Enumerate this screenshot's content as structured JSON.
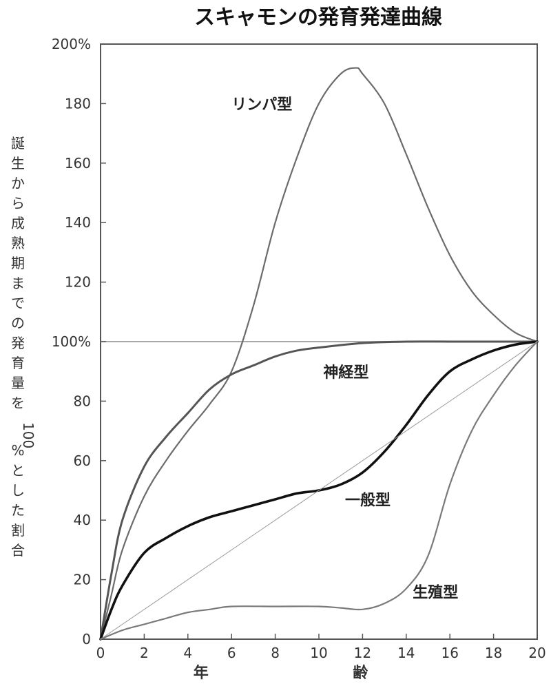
{
  "chart_data": {
    "type": "line",
    "title": "スキャモンの発育発達曲線",
    "ylabel": "誕生から成熟期までの発育量を100%とした割合",
    "xlabel_parts": [
      "年",
      "齢"
    ],
    "xlim": [
      0,
      20
    ],
    "ylim": [
      0,
      200
    ],
    "x_ticks": [
      0,
      2,
      4,
      6,
      8,
      10,
      12,
      14,
      16,
      18,
      20
    ],
    "y_ticks": [
      {
        "value": 0,
        "label": "0"
      },
      {
        "value": 20,
        "label": "20"
      },
      {
        "value": 40,
        "label": "40"
      },
      {
        "value": 60,
        "label": "60"
      },
      {
        "value": 80,
        "label": "80"
      },
      {
        "value": 100,
        "label": "100%"
      },
      {
        "value": 120,
        "label": "120"
      },
      {
        "value": 140,
        "label": "140"
      },
      {
        "value": 160,
        "label": "160"
      },
      {
        "value": 180,
        "label": "180"
      },
      {
        "value": 200,
        "label": "200%"
      }
    ],
    "grid": false,
    "reference_line_y": 100,
    "series": [
      {
        "name": "リンパ型",
        "color": "#6b6b6b",
        "label_at": [
          6,
          178
        ],
        "points": [
          [
            0,
            0
          ],
          [
            0.5,
            15
          ],
          [
            1,
            30
          ],
          [
            2,
            48
          ],
          [
            3,
            60
          ],
          [
            4,
            70
          ],
          [
            5,
            79
          ],
          [
            6,
            90
          ],
          [
            7,
            112
          ],
          [
            8,
            140
          ],
          [
            9,
            162
          ],
          [
            10,
            180
          ],
          [
            11,
            190
          ],
          [
            11.7,
            192
          ],
          [
            12,
            190
          ],
          [
            13,
            180
          ],
          [
            14,
            163
          ],
          [
            15,
            145
          ],
          [
            16,
            129
          ],
          [
            17,
            117
          ],
          [
            18,
            109
          ],
          [
            19,
            103
          ],
          [
            20,
            100
          ]
        ]
      },
      {
        "name": "神経型",
        "color": "#555555",
        "label_at": [
          10.2,
          88
        ],
        "points": [
          [
            0,
            0
          ],
          [
            0.5,
            22
          ],
          [
            1,
            40
          ],
          [
            2,
            58
          ],
          [
            3,
            68
          ],
          [
            4,
            76
          ],
          [
            5,
            84
          ],
          [
            6,
            89
          ],
          [
            7,
            92
          ],
          [
            8,
            95
          ],
          [
            9,
            97
          ],
          [
            10,
            98
          ],
          [
            12,
            99.5
          ],
          [
            14,
            100
          ],
          [
            16,
            100
          ],
          [
            18,
            100
          ],
          [
            20,
            100
          ]
        ]
      },
      {
        "name": "一般型",
        "color": "#111111",
        "label_at": [
          11.2,
          45
        ],
        "points": [
          [
            0,
            0
          ],
          [
            0.5,
            10
          ],
          [
            1,
            18
          ],
          [
            2,
            29
          ],
          [
            3,
            34
          ],
          [
            4,
            38
          ],
          [
            5,
            41
          ],
          [
            6,
            43
          ],
          [
            7,
            45
          ],
          [
            8,
            47
          ],
          [
            9,
            49
          ],
          [
            10,
            50
          ],
          [
            11,
            52
          ],
          [
            12,
            56
          ],
          [
            13,
            63
          ],
          [
            14,
            72
          ],
          [
            15,
            82
          ],
          [
            16,
            90
          ],
          [
            17,
            94
          ],
          [
            18,
            97
          ],
          [
            19,
            99
          ],
          [
            20,
            100
          ]
        ]
      },
      {
        "name": "生殖型",
        "color": "#7a7a7a",
        "label_at": [
          14.3,
          14
        ],
        "points": [
          [
            0,
            0
          ],
          [
            1,
            3
          ],
          [
            2,
            5
          ],
          [
            3,
            7
          ],
          [
            4,
            9
          ],
          [
            5,
            10
          ],
          [
            6,
            11
          ],
          [
            8,
            11
          ],
          [
            10,
            11
          ],
          [
            11,
            10.5
          ],
          [
            12,
            10
          ],
          [
            13,
            12
          ],
          [
            14,
            17
          ],
          [
            15,
            28
          ],
          [
            16,
            52
          ],
          [
            17,
            70
          ],
          [
            18,
            82
          ],
          [
            19,
            92
          ],
          [
            20,
            100
          ]
        ]
      },
      {
        "name": "",
        "color": "#9a9a9a",
        "width": 1,
        "points": [
          [
            0,
            0
          ],
          [
            20,
            100
          ]
        ]
      }
    ]
  }
}
